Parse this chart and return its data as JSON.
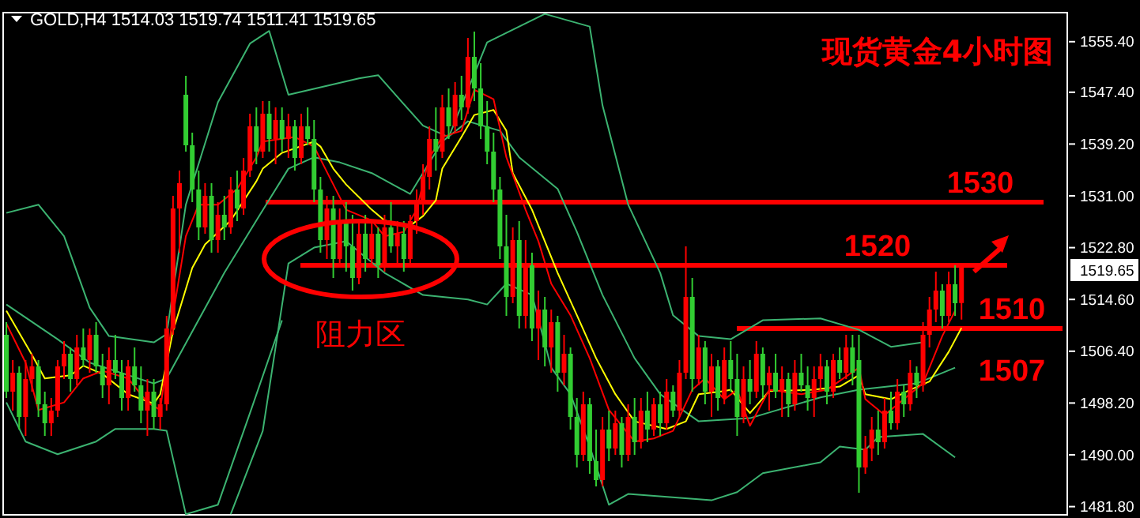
{
  "chart_data": {
    "type": "candlestick",
    "title": "现货黄金4小时图",
    "subtitle": "GOLD,H4 1514.03 1519.74 1511.41 1519.65",
    "categories": [
      null,
      null,
      null,
      null,
      null,
      null,
      null,
      null,
      null,
      null,
      null,
      null,
      null,
      null,
      null,
      null,
      null,
      null,
      null,
      null,
      null,
      null,
      null,
      null,
      null,
      null,
      null,
      null,
      null,
      null,
      null,
      null,
      null,
      null,
      null,
      null,
      null,
      null,
      null,
      null,
      null,
      null,
      null,
      null,
      null,
      null,
      null,
      null,
      null,
      null,
      null,
      null,
      null,
      null,
      null,
      null,
      null,
      null,
      null,
      null,
      null,
      null,
      null,
      null,
      null,
      null,
      null,
      null,
      null,
      null,
      null,
      null,
      null,
      null,
      null,
      null,
      null,
      null,
      null,
      null,
      null,
      null,
      null,
      null,
      null,
      null,
      null,
      null,
      null,
      null,
      null,
      null,
      null,
      null,
      null,
      null,
      null,
      null,
      null,
      null,
      null,
      null,
      null,
      null,
      null,
      null,
      null,
      null,
      null,
      null,
      null,
      null,
      null,
      null,
      null,
      null,
      null,
      null,
      null,
      null,
      null,
      null,
      null,
      null,
      null,
      null,
      null,
      null,
      null,
      null,
      null,
      null,
      null,
      null,
      null,
      null,
      null,
      null,
      null,
      null,
      null,
      null,
      null,
      null,
      null,
      null,
      null,
      null,
      null,
      null,
      null,
      null,
      null,
      null,
      null,
      null,
      null,
      null,
      null,
      null,
      null,
      null,
      null,
      null,
      null,
      null
    ],
    "ohlc": [
      [
        1509,
        1511,
        1499,
        1500
      ],
      [
        1500,
        1505,
        1497,
        1503
      ],
      [
        1503,
        1504,
        1494,
        1496
      ],
      [
        1496,
        1505,
        1493,
        1502
      ],
      [
        1502,
        1506,
        1500,
        1504
      ],
      [
        1504,
        1505,
        1496,
        1498
      ],
      [
        1498,
        1500,
        1493,
        1495
      ],
      [
        1495,
        1499,
        1493,
        1497
      ],
      [
        1497,
        1505,
        1496,
        1504
      ],
      [
        1504,
        1508,
        1502,
        1506
      ],
      [
        1506,
        1507,
        1500,
        1502
      ],
      [
        1502,
        1509,
        1501,
        1507
      ],
      [
        1507,
        1510,
        1504,
        1505
      ],
      [
        1505,
        1510,
        1503,
        1509
      ],
      [
        1509,
        1511,
        1503,
        1504
      ],
      [
        1504,
        1506,
        1499,
        1501
      ],
      [
        1501,
        1507,
        1498,
        1505
      ],
      [
        1505,
        1509,
        1502,
        1503
      ],
      [
        1503,
        1505,
        1497,
        1499
      ],
      [
        1499,
        1505,
        1497,
        1504
      ],
      [
        1504,
        1507,
        1500,
        1501
      ],
      [
        1501,
        1504,
        1495,
        1497
      ],
      [
        1497,
        1502,
        1493,
        1500
      ],
      [
        1500,
        1502,
        1494,
        1496
      ],
      [
        1496,
        1499,
        1494,
        1498
      ],
      [
        1498,
        1512,
        1497,
        1510
      ],
      [
        1510,
        1531,
        1509,
        1529
      ],
      [
        1529,
        1535,
        1522,
        1533
      ],
      [
        1547,
        1550,
        1538,
        1539
      ],
      [
        1539,
        1541,
        1530,
        1532
      ],
      [
        1532,
        1535,
        1524,
        1526
      ],
      [
        1526,
        1533,
        1525,
        1531
      ],
      [
        1531,
        1533,
        1522,
        1524
      ],
      [
        1524,
        1530,
        1522,
        1528
      ],
      [
        1528,
        1531,
        1524,
        1526
      ],
      [
        1526,
        1534,
        1525,
        1532
      ],
      [
        1532,
        1535,
        1527,
        1529
      ],
      [
        1529,
        1537,
        1528,
        1535
      ],
      [
        1535,
        1544,
        1534,
        1542
      ],
      [
        1542,
        1545,
        1536,
        1538
      ],
      [
        1538,
        1546,
        1537,
        1544
      ],
      [
        1544,
        1546,
        1538,
        1540
      ],
      [
        1540,
        1545,
        1536,
        1543
      ],
      [
        1543,
        1545,
        1538,
        1540
      ],
      [
        1540,
        1544,
        1537,
        1542
      ],
      [
        1542,
        1543,
        1535,
        1537
      ],
      [
        1537,
        1544,
        1536,
        1542
      ],
      [
        1542,
        1545,
        1539,
        1540
      ],
      [
        1540,
        1543,
        1530,
        1532
      ],
      [
        1532,
        1534,
        1522,
        1524
      ],
      [
        1524,
        1531,
        1521,
        1529
      ],
      [
        1529,
        1531,
        1518,
        1521
      ],
      [
        1521,
        1529,
        1520,
        1527
      ],
      [
        1527,
        1530,
        1519,
        1523
      ],
      [
        1523,
        1528,
        1516,
        1518
      ],
      [
        1518,
        1527,
        1517,
        1525
      ],
      [
        1525,
        1528,
        1519,
        1521
      ],
      [
        1521,
        1527,
        1520,
        1525
      ],
      [
        1525,
        1526,
        1518,
        1520
      ],
      [
        1520,
        1528,
        1519,
        1526
      ],
      [
        1526,
        1530,
        1522,
        1523
      ],
      [
        1523,
        1527,
        1520,
        1525
      ],
      [
        1525,
        1527,
        1519,
        1521
      ],
      [
        1521,
        1528,
        1520,
        1527
      ],
      [
        1527,
        1532,
        1525,
        1530
      ],
      [
        1530,
        1536,
        1528,
        1534
      ],
      [
        1534,
        1542,
        1532,
        1540
      ],
      [
        1540,
        1545,
        1535,
        1538
      ],
      [
        1538,
        1547,
        1537,
        1545
      ],
      [
        1545,
        1548,
        1540,
        1542
      ],
      [
        1542,
        1549,
        1541,
        1547
      ],
      [
        1547,
        1550,
        1543,
        1545
      ],
      [
        1545,
        1556,
        1544,
        1553
      ],
      [
        1553,
        1557,
        1546,
        1548
      ],
      [
        1548,
        1552,
        1540,
        1542
      ],
      [
        1542,
        1546,
        1536,
        1538
      ],
      [
        1538,
        1541,
        1530,
        1532
      ],
      [
        1532,
        1534,
        1521,
        1523
      ],
      [
        1523,
        1528,
        1512,
        1515
      ],
      [
        1515,
        1526,
        1514,
        1524
      ],
      [
        1524,
        1527,
        1510,
        1512
      ],
      [
        1512,
        1524,
        1510,
        1520
      ],
      [
        1520,
        1522,
        1508,
        1510
      ],
      [
        1510,
        1516,
        1505,
        1513
      ],
      [
        1513,
        1515,
        1504,
        1507
      ],
      [
        1507,
        1513,
        1503,
        1511
      ],
      [
        1511,
        1512,
        1500,
        1503
      ],
      [
        1503,
        1509,
        1501,
        1506
      ],
      [
        1506,
        1507,
        1494,
        1496
      ],
      [
        1496,
        1499,
        1488,
        1490
      ],
      [
        1490,
        1500,
        1489,
        1498
      ],
      [
        1498,
        1499,
        1487,
        1489
      ],
      [
        1489,
        1494,
        1485,
        1486
      ],
      [
        1486,
        1496,
        1485,
        1494
      ],
      [
        1494,
        1497,
        1489,
        1491
      ],
      [
        1491,
        1497,
        1490,
        1495
      ],
      [
        1495,
        1496,
        1488,
        1490
      ],
      [
        1490,
        1498,
        1489,
        1496
      ],
      [
        1496,
        1499,
        1490,
        1492
      ],
      [
        1492,
        1499,
        1491,
        1497
      ],
      [
        1497,
        1500,
        1492,
        1494
      ],
      [
        1494,
        1499,
        1493,
        1498
      ],
      [
        1498,
        1500,
        1493,
        1495
      ],
      [
        1495,
        1502,
        1494,
        1500
      ],
      [
        1500,
        1501,
        1496,
        1497
      ],
      [
        1497,
        1505,
        1496,
        1503
      ],
      [
        1503,
        1523,
        1502,
        1515
      ],
      [
        1515,
        1518,
        1500,
        1502
      ],
      [
        1502,
        1509,
        1501,
        1507
      ],
      [
        1507,
        1508,
        1498,
        1500
      ],
      [
        1500,
        1506,
        1496,
        1504
      ],
      [
        1504,
        1505,
        1497,
        1499
      ],
      [
        1499,
        1507,
        1498,
        1505
      ],
      [
        1505,
        1508,
        1500,
        1502
      ],
      [
        1502,
        1506,
        1493,
        1496
      ],
      [
        1496,
        1504,
        1495,
        1502
      ],
      [
        1502,
        1505,
        1498,
        1500
      ],
      [
        1500,
        1508,
        1499,
        1506
      ],
      [
        1506,
        1507,
        1499,
        1501
      ],
      [
        1501,
        1504,
        1497,
        1503
      ],
      [
        1503,
        1506,
        1499,
        1500
      ],
      [
        1500,
        1504,
        1496,
        1502
      ],
      [
        1502,
        1503,
        1496,
        1498
      ],
      [
        1498,
        1505,
        1497,
        1503
      ],
      [
        1503,
        1506,
        1500,
        1501
      ],
      [
        1501,
        1504,
        1497,
        1499
      ],
      [
        1499,
        1504,
        1496,
        1502
      ],
      [
        1502,
        1506,
        1500,
        1504
      ],
      [
        1504,
        1505,
        1498,
        1500
      ],
      [
        1500,
        1506,
        1499,
        1505
      ],
      [
        1505,
        1507,
        1502,
        1503
      ],
      [
        1503,
        1509,
        1502,
        1507
      ],
      [
        1507,
        1509,
        1501,
        1503
      ],
      [
        1505,
        1509,
        1484,
        1488
      ],
      [
        1488,
        1493,
        1487,
        1491
      ],
      [
        1491,
        1496,
        1489,
        1494
      ],
      [
        1494,
        1497,
        1490,
        1492
      ],
      [
        1492,
        1499,
        1491,
        1497
      ],
      [
        1497,
        1500,
        1494,
        1495
      ],
      [
        1495,
        1502,
        1494,
        1500
      ],
      [
        1500,
        1501,
        1496,
        1498
      ],
      [
        1498,
        1505,
        1497,
        1503
      ],
      [
        1503,
        1504,
        1499,
        1501
      ],
      [
        1501,
        1511,
        1500,
        1509
      ],
      [
        1509,
        1515,
        1507,
        1513
      ],
      [
        1513,
        1519,
        1511,
        1516
      ],
      [
        1516,
        1517,
        1510,
        1512
      ],
      [
        1512,
        1519,
        1511,
        1517
      ],
      [
        1517,
        1520,
        1512,
        1514
      ],
      [
        1514.03,
        1519.74,
        1511.41,
        1519.65
      ],
      null,
      null,
      null,
      null,
      null,
      null,
      null,
      null,
      null,
      null,
      null,
      null,
      null,
      null,
      null,
      null
    ],
    "colors": [
      "#32cd32",
      "#ff0000",
      "#32cd32",
      "#ff0000",
      "#ff0000",
      "#32cd32",
      "#32cd32",
      "#ff0000",
      "#ff0000",
      "#ff0000",
      "#32cd32",
      "#ff0000",
      "#32cd32",
      "#ff0000",
      "#32cd32",
      "#32cd32",
      "#ff0000",
      "#32cd32",
      "#32cd32",
      "#ff0000",
      "#32cd32",
      "#32cd32",
      "#ff0000",
      "#32cd32",
      "#ff0000",
      "#ff0000",
      "#ff0000",
      "#ff0000",
      "#32cd32",
      "#32cd32",
      "#32cd32",
      "#ff0000",
      "#32cd32",
      "#ff0000",
      "#32cd32",
      "#ff0000",
      "#32cd32",
      "#ff0000",
      "#ff0000",
      "#32cd32",
      "#ff0000",
      "#32cd32",
      "#ff0000",
      "#32cd32",
      "#ff0000",
      "#32cd32",
      "#ff0000",
      "#32cd32",
      "#32cd32",
      "#32cd32",
      "#ff0000",
      "#32cd32",
      "#ff0000",
      "#32cd32",
      "#32cd32",
      "#ff0000",
      "#32cd32",
      "#ff0000",
      "#32cd32",
      "#ff0000",
      "#32cd32",
      "#ff0000",
      "#32cd32",
      "#ff0000",
      "#ff0000",
      "#ff0000",
      "#ff0000",
      "#32cd32",
      "#ff0000",
      "#32cd32",
      "#ff0000",
      "#32cd32",
      "#ff0000",
      "#32cd32",
      "#32cd32",
      "#32cd32",
      "#32cd32",
      "#32cd32",
      "#32cd32",
      "#ff0000",
      "#32cd32",
      "#ff0000",
      "#32cd32",
      "#ff0000",
      "#32cd32",
      "#ff0000",
      "#32cd32",
      "#ff0000",
      "#32cd32",
      "#32cd32",
      "#ff0000",
      "#32cd32",
      "#32cd32",
      "#ff0000",
      "#32cd32",
      "#ff0000",
      "#32cd32",
      "#ff0000",
      "#32cd32",
      "#ff0000",
      "#32cd32",
      "#ff0000",
      "#32cd32",
      "#ff0000",
      "#32cd32",
      "#ff0000",
      "#ff0000",
      "#32cd32",
      "#ff0000",
      "#32cd32",
      "#ff0000",
      "#32cd32",
      "#ff0000",
      "#32cd32",
      "#32cd32",
      "#ff0000",
      "#32cd32",
      "#ff0000",
      "#32cd32",
      "#ff0000",
      "#32cd32",
      "#ff0000",
      "#32cd32",
      "#ff0000",
      "#32cd32",
      "#32cd32",
      "#ff0000",
      "#ff0000",
      "#32cd32",
      "#ff0000",
      "#32cd32",
      "#ff0000",
      "#32cd32",
      "#32cd32",
      "#ff0000",
      "#ff0000",
      "#32cd32",
      "#ff0000",
      "#32cd32",
      "#ff0000",
      "#32cd32",
      "#ff0000",
      "#32cd32",
      "#ff0000",
      "#ff0000",
      "#ff0000",
      "#32cd32",
      "#ff0000",
      "#32cd32",
      "#ff0000",
      null,
      null,
      null,
      null,
      null,
      null,
      null,
      null,
      null,
      null,
      null,
      null,
      null,
      null,
      null,
      null
    ],
    "series": [
      {
        "type": "line",
        "color": "#3cb371",
        "values": [
          1528.3,
          null,
          null,
          null,
          null,
          1529.6,
          null,
          null,
          null,
          1524.6,
          null,
          null,
          null,
          1513.3,
          null,
          null,
          1508.8,
          null,
          null,
          null,
          null,
          null,
          null,
          1507.8,
          null,
          1509.1,
          null,
          null,
          1529.6,
          null,
          null,
          null,
          null,
          1545.8,
          null,
          null,
          null,
          null,
          1555.1,
          null,
          null,
          1557.1,
          null,
          null,
          1547,
          null,
          null,
          null,
          null,
          null,
          null,
          null,
          null,
          null,
          null,
          1549.6,
          null,
          null,
          1550.1,
          null,
          null,
          null,
          null,
          null,
          null,
          1542.1,
          null,
          null,
          null,
          1540.3,
          null,
          null,
          null,
          null,
          null,
          1555.3,
          null,
          null,
          null,
          null,
          null,
          null,
          null,
          null,
          1559.8,
          null,
          null,
          null,
          null,
          null,
          null,
          1557.8,
          null,
          1545.3,
          null,
          null,
          null,
          1529.6,
          null,
          null,
          null,
          null,
          1518.8,
          null,
          1512.1,
          null,
          null,
          null,
          1508.8,
          null,
          null,
          null,
          null,
          1508.3,
          null,
          null,
          null,
          null,
          1511.3,
          null,
          null,
          null,
          null,
          null,
          null,
          null,
          null,
          1511.6,
          null,
          null,
          null,
          null,
          null,
          1509.8,
          null,
          null,
          null,
          null,
          1507.1,
          null,
          null,
          null,
          null,
          1507.8,
          null,
          null,
          null,
          null,
          null,
          null,
          null,
          null,
          null,
          null,
          null,
          null,
          null,
          null,
          null,
          null,
          null,
          null,
          null,
          null,
          null,
          null
        ]
      },
      {
        "type": "line",
        "color": "#3cb371",
        "values": [
          1513.8,
          null,
          null,
          null,
          null,
          null,
          null,
          null,
          1508.3,
          null,
          null,
          null,
          null,
          1504.6,
          null,
          null,
          null,
          null,
          null,
          null,
          null,
          null,
          null,
          1501.3,
          null,
          1502.1,
          null,
          null,
          null,
          null,
          null,
          null,
          null,
          null,
          1518.8,
          null,
          null,
          null,
          null,
          1527.1,
          null,
          null,
          null,
          null,
          1535.3,
          null,
          null,
          null,
          1537.1,
          null,
          null,
          null,
          1536.3,
          null,
          null,
          null,
          null,
          1534.6,
          null,
          null,
          null,
          null,
          null,
          1531.3,
          null,
          null,
          null,
          null,
          1539.6,
          null,
          null,
          null,
          1542.8,
          null,
          null,
          null,
          null,
          1541.3,
          null,
          null,
          1537.1,
          null,
          null,
          null,
          null,
          null,
          1532.1,
          null,
          null,
          1525.3,
          null,
          null,
          null,
          1515.3,
          null,
          null,
          null,
          null,
          1505.3,
          null,
          null,
          null,
          1499.6,
          null,
          null,
          null,
          null,
          null,
          1495.3,
          null,
          null,
          null,
          null,
          null,
          null,
          null,
          1495.8,
          null,
          null,
          null,
          null,
          null,
          null,
          null,
          null,
          null,
          null,
          1499.1,
          null,
          null,
          null,
          null,
          null,
          1500.3,
          null,
          null,
          null,
          null,
          null,
          null,
          null,
          null,
          1501.3,
          null,
          null,
          null,
          null,
          null,
          1503.8,
          null,
          null,
          null,
          null,
          null,
          null,
          null,
          null,
          null,
          null,
          null,
          null,
          null,
          null,
          null,
          null,
          null
        ]
      },
      {
        "type": "line",
        "color": "#3cb371",
        "values": [
          1498.3,
          null,
          null,
          1492.1,
          null,
          null,
          null,
          null,
          1490.1,
          null,
          null,
          null,
          null,
          null,
          1492.1,
          null,
          null,
          1494.1,
          null,
          null,
          null,
          null,
          null,
          1494.1,
          null,
          1493.8,
          null,
          null,
          1480.6,
          null,
          null,
          null,
          null,
          1482.1,
          null,
          null,
          null,
          null,
          1496.6,
          null,
          null,
          null,
          null,
          1511.3,
          null,
          null,
          null,
          null,
          null,
          null,
          null,
          null,
          null,
          null,
          null,
          null,
          null,
          null,
          null,
          null,
          null,
          null,
          null,
          null,
          null,
          null,
          null,
          null,
          null,
          null,
          null,
          null,
          null,
          null,
          null,
          null,
          null,
          null,
          null,
          null,
          null,
          null,
          null,
          null,
          null,
          null,
          null,
          null,
          null,
          null,
          null,
          null,
          null,
          null,
          null,
          null,
          null,
          null,
          null,
          null,
          null,
          null,
          null,
          null,
          null,
          null,
          null,
          null,
          null,
          null,
          null,
          null,
          null,
          null,
          null,
          null,
          null,
          null,
          null,
          null,
          null,
          null,
          null,
          null,
          null,
          null,
          null,
          null,
          null,
          null,
          null,
          null,
          null,
          null,
          null,
          null,
          null,
          null,
          null,
          null,
          null,
          null,
          null,
          null,
          null,
          null,
          null,
          null,
          null,
          null,
          null,
          null,
          null,
          null,
          null,
          null,
          null,
          null,
          null,
          null,
          null,
          null,
          null,
          null,
          null,
          null
        ]
      },
      {
        "type": "line",
        "color": "#3cb371",
        "values": [
          null,
          null,
          null,
          null,
          null,
          null,
          null,
          null,
          null,
          null,
          null,
          null,
          null,
          null,
          null,
          null,
          null,
          null,
          null,
          null,
          null,
          null,
          null,
          null,
          null,
          null,
          null,
          null,
          null,
          null,
          null,
          null,
          null,
          null,
          null,
          1480.6,
          null,
          null,
          null,
          null,
          1493.8,
          null,
          null,
          null,
          1520.3,
          null,
          null,
          null,
          1522.8,
          null,
          null,
          null,
          null,
          1523.8,
          null,
          null,
          null,
          null,
          null,
          1518.8,
          null,
          null,
          null,
          null,
          null,
          1515.3,
          null,
          null,
          null,
          null,
          null,
          null,
          1514.6,
          null,
          null,
          1513.8,
          null,
          null,
          1517.1,
          null,
          null,
          null,
          1515.3,
          null,
          null,
          1503.8,
          null,
          null,
          1499.6,
          null,
          null,
          1491.3,
          null,
          null,
          1482.1,
          null,
          null,
          1483.8,
          null,
          null,
          null,
          null,
          null,
          null,
          null,
          null,
          null,
          null,
          null,
          null,
          1482.8,
          null,
          null,
          null,
          1484.1,
          null,
          null,
          null,
          1487.1,
          null,
          null,
          null,
          null,
          null,
          null,
          null,
          null,
          1488.8,
          null,
          null,
          1491.3,
          null,
          null,
          null,
          1490.8,
          null,
          1492.8,
          null,
          null,
          null,
          null,
          null,
          null,
          1493.3,
          null,
          null,
          null,
          null,
          1489.6,
          null,
          null,
          null,
          null,
          null,
          null,
          null,
          null,
          null,
          null,
          null,
          null,
          null,
          null,
          null,
          null,
          null
        ]
      },
      {
        "type": "line",
        "color": "#ffff00",
        "values": [
          1512.8,
          null,
          null,
          null,
          1505.8,
          null,
          1502.1,
          null,
          null,
          null,
          1502.6,
          null,
          1504.1,
          null,
          null,
          1502.8,
          null,
          null,
          null,
          1499.6,
          null,
          null,
          null,
          1498.1,
          1499.6,
          null,
          1509.6,
          null,
          null,
          1519.6,
          null,
          1523.3,
          null,
          null,
          null,
          1527.1,
          null,
          null,
          null,
          1533.3,
          1535.3,
          null,
          null,
          1537.8,
          null,
          null,
          null,
          null,
          1539.6,
          1538.8,
          null,
          1535.3,
          null,
          1532.8,
          null,
          null,
          null,
          1528.8,
          null,
          1527.1,
          null,
          null,
          null,
          1526.3,
          null,
          1527.8,
          null,
          1530.3,
          1535.3,
          null,
          null,
          1540.3,
          null,
          1543.8,
          null,
          null,
          1544.6,
          null,
          1541.3,
          1534.6,
          null,
          null,
          1528.8,
          null,
          1523.8,
          null,
          1518.8,
          null,
          null,
          1512.1,
          null,
          null,
          1505.3,
          null,
          null,
          1499.6,
          null,
          null,
          1495.3,
          null,
          null,
          null,
          null,
          1494.1,
          null,
          null,
          1495.3,
          null,
          1499.6,
          null,
          null,
          null,
          1500.1,
          1500.3,
          null,
          null,
          1496.6,
          null,
          null,
          1500.1,
          null,
          null,
          null,
          null,
          null,
          null,
          1500.3,
          null,
          null,
          null,
          1500.8,
          null,
          null,
          1502.6,
          1499.6,
          null,
          null,
          null,
          1498.8,
          null,
          null,
          1500.3,
          null,
          null,
          1501.6,
          null,
          null,
          1506.3,
          null,
          1510.1,
          null,
          null,
          null,
          null,
          null,
          null,
          null,
          null,
          null,
          null,
          null,
          null,
          null,
          null,
          null,
          null
        ]
      },
      {
        "type": "line",
        "color": "#ff0000",
        "values": [
          1510.8,
          null,
          null,
          1504.6,
          null,
          1497.1,
          null,
          null,
          null,
          1498.3,
          null,
          null,
          1502.1,
          null,
          null,
          1503.3,
          null,
          null,
          null,
          1502.1,
          null,
          null,
          1498.3,
          null,
          1497.1,
          null,
          1512.1,
          null,
          1524.6,
          null,
          1529.6,
          null,
          null,
          1529.6,
          null,
          null,
          1532.1,
          null,
          null,
          1537.1,
          1539.6,
          null,
          null,
          null,
          null,
          1540.3,
          null,
          null,
          1538.8,
          null,
          null,
          1532.8,
          null,
          1528.8,
          null,
          null,
          null,
          1527.1,
          null,
          1524.6,
          null,
          null,
          1525.3,
          null,
          1528.8,
          null,
          1537.1,
          null,
          1540.3,
          null,
          null,
          1541.3,
          null,
          1547.8,
          null,
          null,
          1546.3,
          null,
          1537.1,
          null,
          null,
          1528.8,
          null,
          1523.8,
          null,
          1517.1,
          null,
          null,
          1512.1,
          null,
          null,
          1505.3,
          null,
          null,
          1497.1,
          null,
          null,
          null,
          1492.1,
          null,
          null,
          1492.6,
          null,
          null,
          1493.8,
          null,
          null,
          1500.3,
          null,
          1502.1,
          null,
          null,
          1498.8,
          null,
          1500.3,
          null,
          1494.6,
          null,
          null,
          1500.3,
          null,
          null,
          null,
          null,
          1499.6,
          null,
          null,
          null,
          1500.3,
          null,
          null,
          null,
          null,
          1503.8,
          1498.8,
          null,
          null,
          1496.3,
          null,
          null,
          1498.8,
          null,
          null,
          1501.3,
          null,
          null,
          1508.8,
          null,
          1512.8,
          null,
          null,
          null,
          null,
          null,
          null,
          null,
          null,
          null,
          null,
          null,
          null,
          null,
          null,
          null,
          null,
          null
        ]
      }
    ],
    "ylim": [
      1480.5,
      1560
    ],
    "yticks": [
      {
        "value": 1481.8,
        "label": "1481.80"
      },
      {
        "value": 1490,
        "label": "1490.00"
      },
      {
        "value": 1498.2,
        "label": "1498.20"
      },
      {
        "value": 1506.4,
        "label": "1506.40"
      },
      {
        "value": 1514.6,
        "label": "1514.60"
      },
      {
        "value": 1522.8,
        "label": "1522.80"
      },
      {
        "value": 1531,
        "label": "1531.00"
      },
      {
        "value": 1539.2,
        "label": "1539.20"
      },
      {
        "value": 1547.4,
        "label": "1547.40"
      },
      {
        "value": 1555.4,
        "label": "1555.40"
      }
    ],
    "tick_labels": "y",
    "ref_lines": [
      {
        "axis": "y",
        "value": 1530,
        "label": "1530",
        "color": "#ff0000"
      },
      {
        "axis": "y",
        "value": 1520,
        "label": "1520",
        "color": "#ff0000"
      },
      {
        "axis": "y",
        "value": 1510,
        "label": "1510",
        "color": "#ff0000"
      }
    ],
    "annotations": [
      "1507",
      "1519.65",
      "阻力区"
    ]
  }
}
